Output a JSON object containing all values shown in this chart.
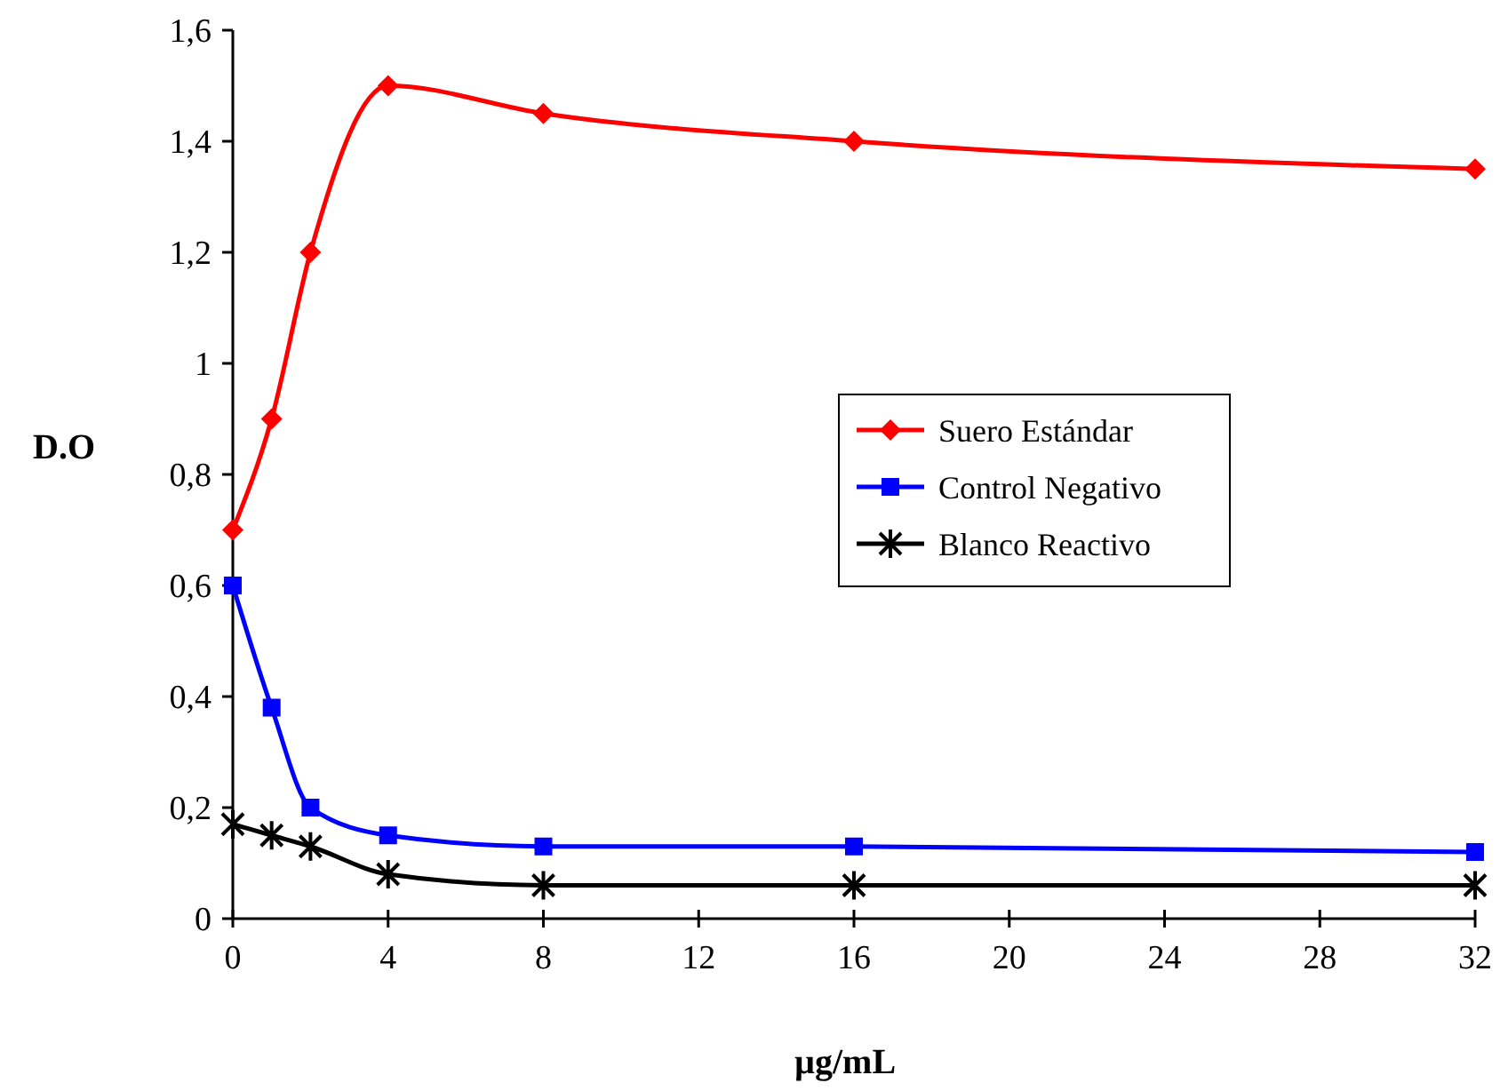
{
  "chart_data": {
    "type": "line",
    "xlabel": "µg/mL",
    "ylabel": "D.O",
    "x": [
      0,
      1,
      2,
      4,
      8,
      16,
      32
    ],
    "xlim": [
      0,
      32
    ],
    "xticks": [
      0,
      4,
      8,
      12,
      16,
      20,
      24,
      28,
      32
    ],
    "ylim": [
      0,
      1.6
    ],
    "yticks": [
      0,
      {
        "value": 0.2,
        "label": "0,2"
      },
      {
        "value": 0.4,
        "label": "0,4"
      },
      {
        "value": 0.6,
        "label": "0,6"
      },
      {
        "value": 0.8,
        "label": "0,8"
      },
      1,
      {
        "value": 1.2,
        "label": "1,2"
      },
      {
        "value": 1.4,
        "label": "1,4"
      },
      {
        "value": 1.6,
        "label": "1,6"
      }
    ],
    "legend": "right",
    "grid": false,
    "line_style": "solid",
    "series": [
      {
        "name": "Suero Estándar",
        "color": "#ff0000",
        "marker": "diamond",
        "values": [
          0.7,
          0.9,
          1.2,
          1.5,
          1.45,
          1.4,
          1.35
        ]
      },
      {
        "name": "Control Negativo",
        "color": "#0000ff",
        "marker": "square",
        "values": [
          0.6,
          0.38,
          0.2,
          0.15,
          0.13,
          0.13,
          0.12
        ]
      },
      {
        "name": "Blanco Reactivo",
        "color": "#000000",
        "marker": "cross",
        "values": [
          0.17,
          0.15,
          0.13,
          0.08,
          0.06,
          0.06,
          0.06
        ]
      }
    ]
  }
}
